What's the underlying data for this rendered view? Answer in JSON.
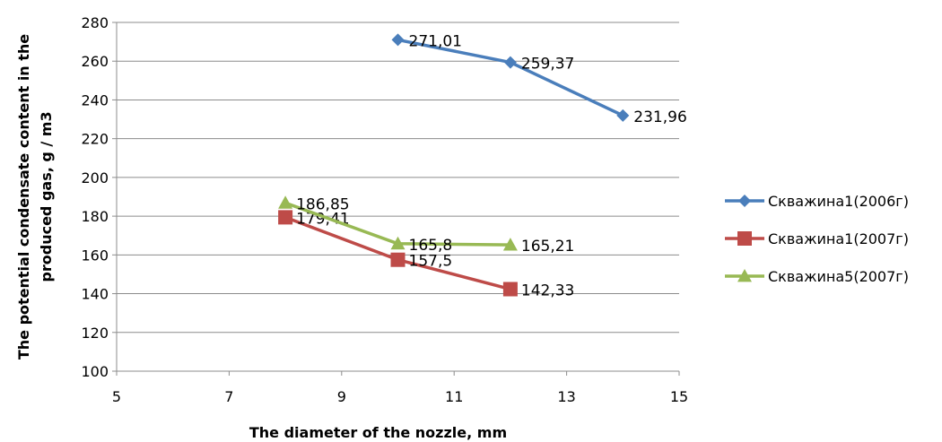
{
  "chart_data": {
    "type": "line",
    "xlabel": "The diameter of the nozzle, mm",
    "ylabel_lines": [
      "The potential condensate content in the",
      "produced gas, g / m3"
    ],
    "xlim": [
      5,
      15
    ],
    "ylim": [
      100,
      280
    ],
    "xticks": [
      5,
      7,
      9,
      11,
      13,
      15
    ],
    "yticks": [
      100,
      120,
      140,
      160,
      180,
      200,
      220,
      240,
      260,
      280
    ],
    "grid": "horizontal",
    "legend_position": "right",
    "series": [
      {
        "name": "Скважина1(2006г)",
        "color": "#4a7ebb",
        "marker": "diamond",
        "x": [
          10,
          12,
          14
        ],
        "y": [
          271.01,
          259.37,
          231.96
        ],
        "labels": [
          "271,01",
          "259,37",
          "231,96"
        ]
      },
      {
        "name": "Скважина1(2007г)",
        "color": "#be4b48",
        "marker": "square",
        "x": [
          8,
          10,
          12
        ],
        "y": [
          179.41,
          157.5,
          142.33
        ],
        "labels": [
          "179,41",
          "157,5",
          "142,33"
        ]
      },
      {
        "name": "Скважина5(2007г)",
        "color": "#98b954",
        "marker": "triangle",
        "x": [
          8,
          10,
          12
        ],
        "y": [
          186.85,
          165.8,
          165.21
        ],
        "labels": [
          "186,85",
          "165,8",
          "165,21"
        ]
      }
    ]
  }
}
